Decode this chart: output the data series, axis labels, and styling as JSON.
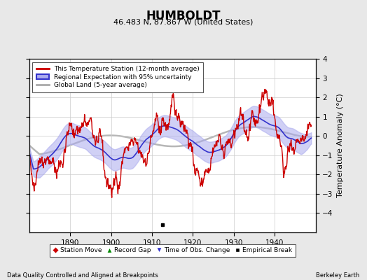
{
  "title": "HUMBOLDT",
  "subtitle": "46.483 N, 87.867 W (United States)",
  "ylabel": "Temperature Anomaly (°C)",
  "xlim": [
    1880,
    1950
  ],
  "ylim": [
    -5,
    4
  ],
  "yticks": [
    -4,
    -3,
    -2,
    -1,
    0,
    1,
    2,
    3,
    4
  ],
  "xticks": [
    1890,
    1900,
    1910,
    1920,
    1930,
    1940
  ],
  "footer_left": "Data Quality Controlled and Aligned at Breakpoints",
  "footer_right": "Berkeley Earth",
  "legend_entries": [
    "This Temperature Station (12-month average)",
    "Regional Expectation with 95% uncertainty",
    "Global Land (5-year average)"
  ],
  "station_color": "#cc0000",
  "regional_color": "#3333cc",
  "regional_fill_color": "#aaaaee",
  "global_color": "#aaaaaa",
  "background_color": "#e8e8e8",
  "plot_bg_color": "#ffffff",
  "empirical_break_year": 1912.5,
  "empirical_break_value": -4.6
}
